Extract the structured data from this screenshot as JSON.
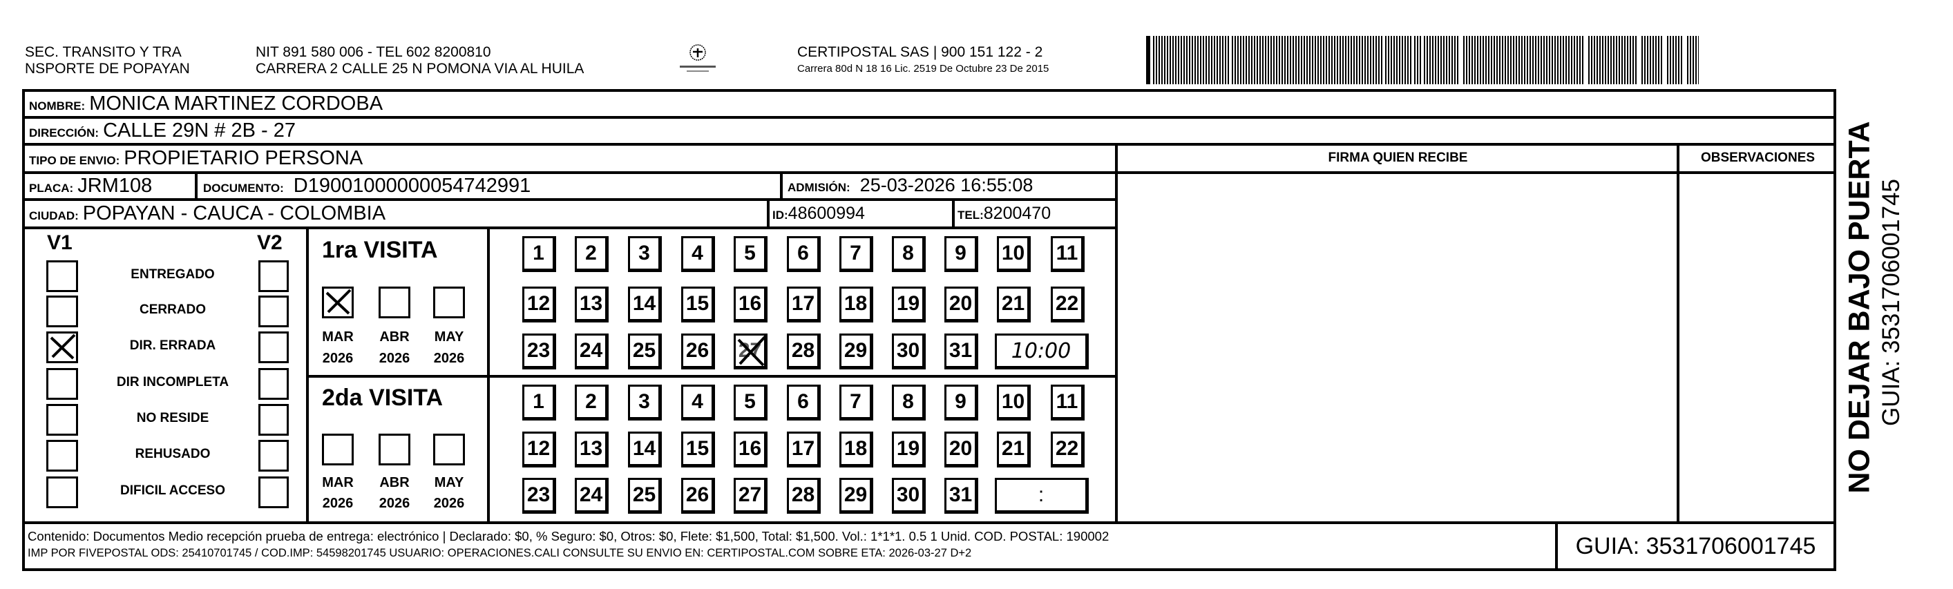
{
  "header": {
    "org_line1": "SEC. TRANSITO Y TRA",
    "org_line2": "NSPORTE DE POPAYAN",
    "nit": "NIT 891 580 006 - TEL 602 8200810",
    "address": "CARRERA 2 CALLE 25 N POMONA VIA AL HUILA",
    "logo_icon": "certipostal-logo-icon",
    "company": "CERTIPOSTAL SAS | 900 151 122 - 2",
    "license": "Carrera 80d N 18 16  Lic. 2519 De Octubre 23 De 2015",
    "barcode_value": "3531706001745"
  },
  "recipient": {
    "nombre_label": "NOMBRE:",
    "nombre": "MONICA MARTINEZ CORDOBA",
    "direccion_label": "DIRECCIÓN:",
    "direccion": "CALLE 29N # 2B - 27",
    "tipo_label": "TIPO DE ENVIO:",
    "tipo": "PROPIETARIO PERSONA",
    "placa_label": "PLACA:",
    "placa": "JRM108",
    "documento_label": "DOCUMENTO:",
    "documento": "D19001000000054742991",
    "admision_label": "ADMISIÓN:",
    "admision": "25-03-2026 16:55:08",
    "ciudad_label": "CIUDAD:",
    "ciudad": "POPAYAN - CAUCA - COLOMBIA",
    "id_label": "ID:",
    "id": "48600994",
    "tel_label": "TEL:",
    "tel": "8200470"
  },
  "signature": {
    "firma_header": "FIRMA QUIEN RECIBE",
    "observaciones_header": "OBSERVACIONES"
  },
  "status": {
    "v1_label": "V1",
    "v2_label": "V2",
    "items": [
      {
        "label": "ENTREGADO",
        "v1": false,
        "v2": false
      },
      {
        "label": "CERRADO",
        "v1": false,
        "v2": false
      },
      {
        "label": "DIR. ERRADA",
        "v1": true,
        "v2": false
      },
      {
        "label": "DIR INCOMPLETA",
        "v1": false,
        "v2": false
      },
      {
        "label": "NO RESIDE",
        "v1": false,
        "v2": false
      },
      {
        "label": "REHUSADO",
        "v1": false,
        "v2": false
      },
      {
        "label": "DIFICIL ACCESO",
        "v1": false,
        "v2": false
      }
    ]
  },
  "visits": [
    {
      "label": "1ra VISITA",
      "months": [
        {
          "month": "MAR",
          "year": "2026",
          "checked": true
        },
        {
          "month": "ABR",
          "year": "2026",
          "checked": false
        },
        {
          "month": "MAY",
          "year": "2026",
          "checked": false
        }
      ],
      "marked_day": 27,
      "time": "10:00"
    },
    {
      "label": "2da VISITA",
      "months": [
        {
          "month": "MAR",
          "year": "2026",
          "checked": false
        },
        {
          "month": "ABR",
          "year": "2026",
          "checked": false
        },
        {
          "month": "MAY",
          "year": "2026",
          "checked": false
        }
      ],
      "marked_day": null,
      "time": ":"
    }
  ],
  "footer": {
    "contenido": "Contenido: Documentos Medio recepción prueba de entrega: electrónico | Declarado: $0, % Seguro: $0, Otros: $0, Flete: $1,500, Total: $1,500. Vol.: 1*1*1. 0.5  1 Unid. COD. POSTAL: 190002",
    "impresion": "IMP POR FIVEPOSTAL ODS: 25410701745 / COD.IMP: 54598201745 USUARIO: OPERACIONES.CALI CONSULTE SU ENVIO EN: CERTIPOSTAL.COM SOBRE ETA: 2026-03-27 D+2",
    "guia": "GUIA: 3531706001745"
  },
  "side": {
    "warning": "NO DEJAR BAJO PUERTA",
    "guia": "GUIA: 3531706001745"
  }
}
